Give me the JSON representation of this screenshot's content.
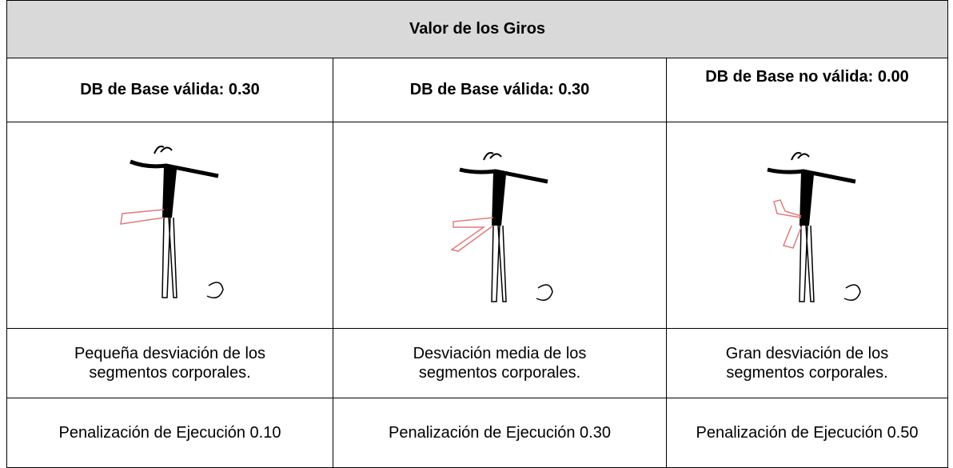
{
  "table": {
    "title": "Valor de los Giros",
    "rows": [
      [
        "DB de Base válida: 0.30",
        "DB de Base válida: 0.30",
        "DB de Base no válida: 0.00"
      ],
      [
        "Pequeña desviación de los segmentos corporales.",
        "Desviación media de los segmentos corporales.",
        "Gran desviación de los segmentos corporales."
      ],
      [
        "Penalización de Ejecución 0.10",
        "Penalización de Ejecución 0.30",
        "Penalización de Ejecución 0.50"
      ]
    ]
  }
}
